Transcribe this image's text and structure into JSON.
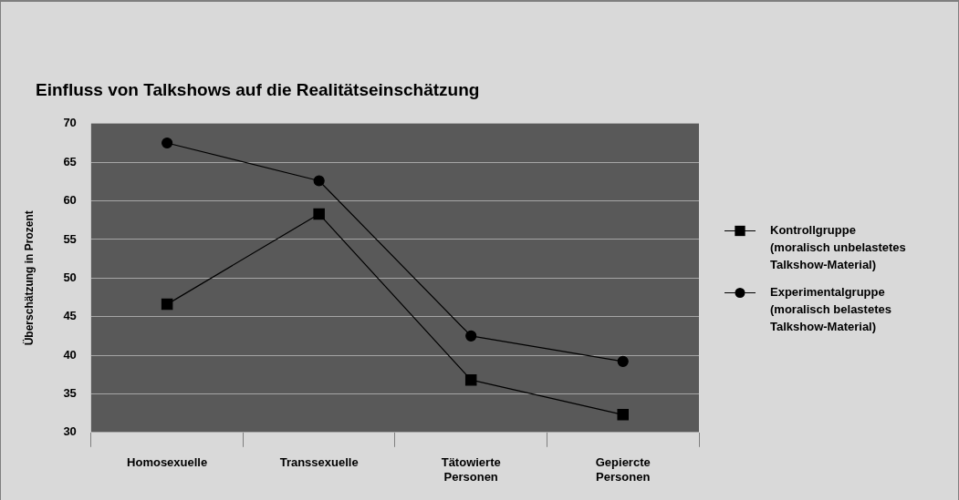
{
  "chart_data": {
    "type": "line",
    "title": "Einfluss von Talkshows auf die Realitätseinschätzung",
    "ylabel": "Überschätzung in Prozent",
    "categories": [
      "Homosexuelle",
      "Transsexuelle",
      "Tätowierte Personen",
      "Gepiercte Personen"
    ],
    "series": [
      {
        "name": "Kontrollgruppe (moralisch unbelastetes Talkshow-Material)",
        "color": "#000000",
        "marker": "square",
        "values": [
          46.6,
          58.3,
          36.8,
          32.3
        ]
      },
      {
        "name": "Experimentalgruppe (moralisch belastetes Talkshow-Material)",
        "color": "#000000",
        "marker": "circle",
        "values": [
          67.5,
          62.6,
          42.5,
          39.2
        ]
      }
    ],
    "ylim": [
      30,
      70
    ],
    "yticks": [
      30,
      35,
      40,
      45,
      50,
      55,
      60,
      65,
      70
    ],
    "grid": "y",
    "legend": "right",
    "line_style": "solid"
  }
}
